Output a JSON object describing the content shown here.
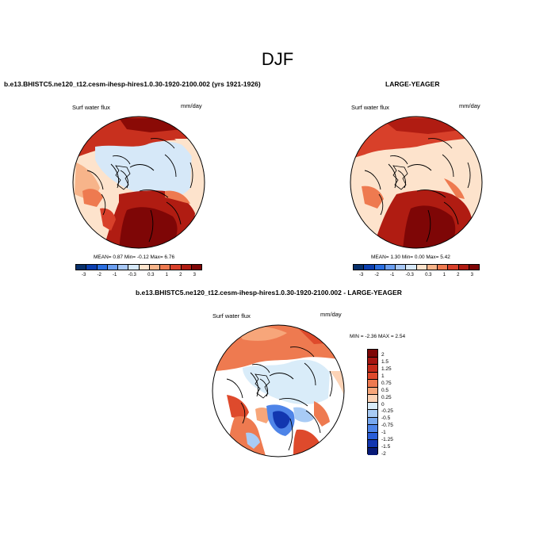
{
  "title": "DJF",
  "panels": {
    "left": {
      "title": "b.e13.BHISTC5.ne120_t12.cesm-ihesp-hires1.0.30-1920-2100.002 (yrs 1921-1926)",
      "variable": "Surf water flux",
      "units": "mm/day",
      "stats": "MEAN=   0.87  Min=   -0.12  Max=   6.76"
    },
    "right": {
      "title": "LARGE-YEAGER",
      "variable": "Surf water flux",
      "units": "mm/day",
      "stats": "MEAN=   1.30  Min=   0.00  Max=   5.42"
    },
    "diff": {
      "title": "b.e13.BHISTC5.ne120_t12.cesm-ihesp-hires1.0.30-1920-2100.002 - LARGE-YEAGER",
      "variable": "Surf water flux",
      "units": "mm/day",
      "stats": "MIN =   -2.36 MAX =   2.54"
    }
  },
  "colorbar_main": {
    "colors": [
      "#08306b",
      "#0b3fb0",
      "#2a6ee0",
      "#6a9ef0",
      "#a8c8f6",
      "#d6e8f8",
      "#fde3cc",
      "#f7b48a",
      "#ee7a50",
      "#d8402a",
      "#b01c12",
      "#7e0606"
    ],
    "labels": [
      "-3",
      "-2",
      "-1",
      "-0.3",
      "0.3",
      "1",
      "2",
      "3"
    ]
  },
  "colorbar_diff": {
    "colors": [
      "#7e0606",
      "#a51410",
      "#c52a1a",
      "#de4a2c",
      "#ee7a50",
      "#f7a67a",
      "#fcd3b6",
      "#d9ecf9",
      "#a8cbf5",
      "#78a8ef",
      "#4e84e8",
      "#2a5ed8",
      "#1236b0",
      "#081a78"
    ],
    "labels": [
      "2",
      "1.5",
      "1.25",
      "1",
      "0.75",
      "0.5",
      "0.25",
      "0",
      "-0.25",
      "-0.5",
      "-0.75",
      "-1",
      "-1.25",
      "-1.5",
      "-2"
    ]
  }
}
